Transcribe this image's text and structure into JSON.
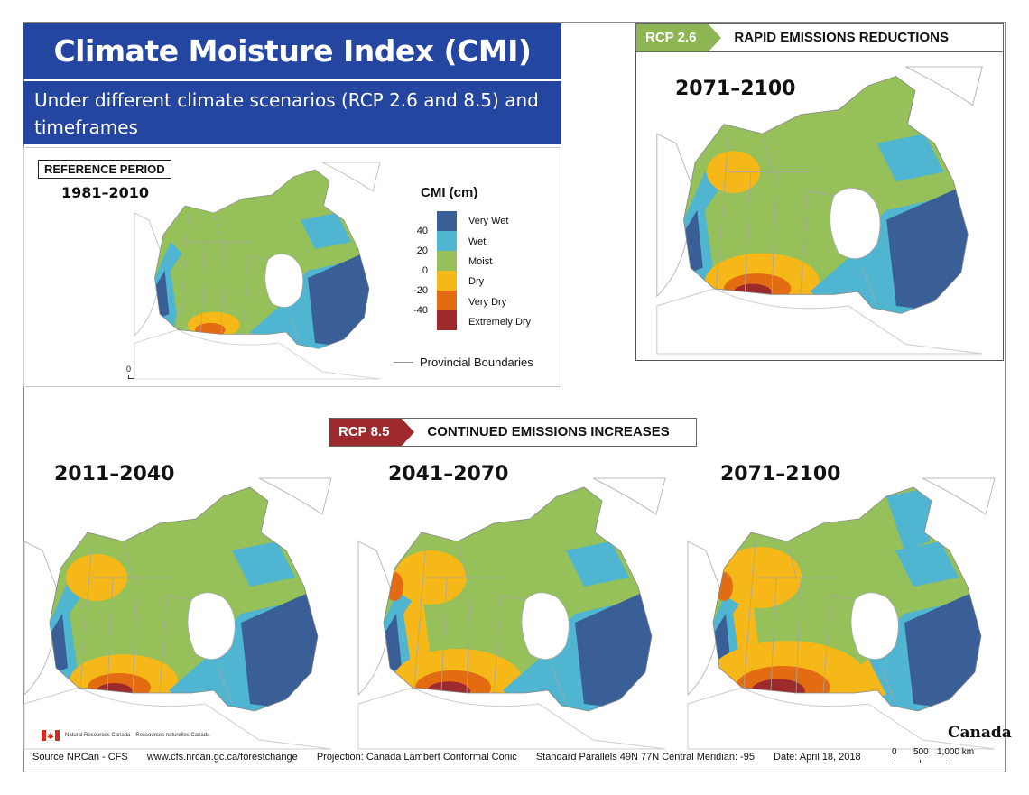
{
  "header": {
    "title": "Climate Moisture Index (CMI)",
    "subtitle": "Under different climate scenarios (RCP 2.6 and 8.5) and timeframes"
  },
  "reference": {
    "label": "REFERENCE PERIOD",
    "period": "1981–2010"
  },
  "legend": {
    "title": "CMI (cm)",
    "classes": [
      {
        "label": "Very Wet",
        "color": "#3a5f97"
      },
      {
        "label": "Wet",
        "color": "#4fb5d1"
      },
      {
        "label": "Moist",
        "color": "#95c05a"
      },
      {
        "label": "Dry",
        "color": "#f6b818"
      },
      {
        "label": "Very Dry",
        "color": "#e36c12"
      },
      {
        "label": "Extremely Dry",
        "color": "#9e2a2e"
      }
    ],
    "ticks": [
      "40",
      "20",
      "0",
      "-20",
      "-40"
    ],
    "boundary_label": "Provincial Boundaries"
  },
  "rcp26": {
    "tag": "RCP 2.6",
    "text": "RAPID EMISSIONS REDUCTIONS",
    "tag_color": "#8db554",
    "period": "2071–2100"
  },
  "rcp85": {
    "tag": "RCP 8.5",
    "text": "CONTINUED EMISSIONS INCREASES",
    "tag_color": "#9e2a2e",
    "periods": [
      "2011–2040",
      "2041–2070",
      "2071–2100"
    ]
  },
  "scalebar": {
    "ticks": [
      "0",
      "500",
      "1,000 km"
    ]
  },
  "footer": {
    "source": "Source   NRCan - CFS",
    "url": "www.cfs.nrcan.gc.ca/forestchange",
    "projection": "Projection: Canada Lambert Conformal Conic",
    "parallels": "Standard Parallels 49N 77N  Central Meridian: -95",
    "date": "Date: April 18, 2018"
  },
  "logos": {
    "nrcan_en": "Natural Resources Canada",
    "nrcan_fr": "Ressources naturelles Canada",
    "canada": "Canada"
  }
}
